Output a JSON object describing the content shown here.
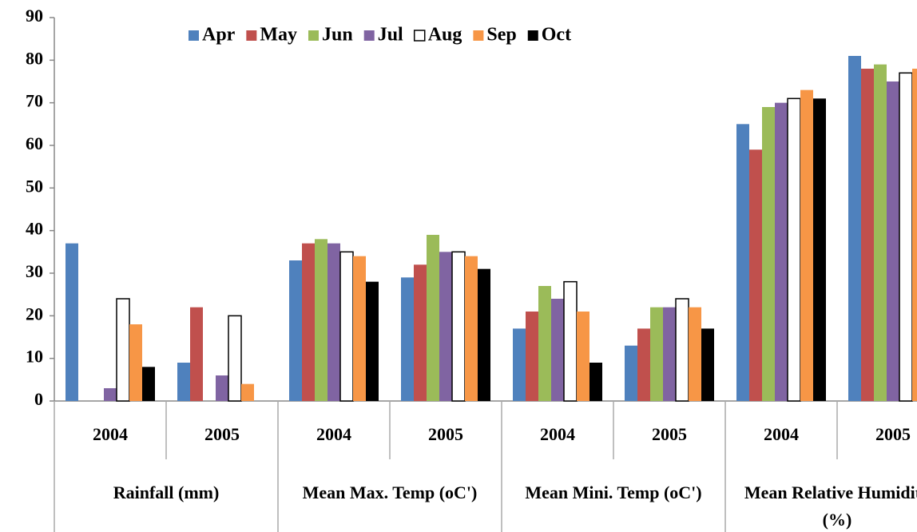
{
  "chart_data": {
    "type": "bar",
    "categories": [
      "2004",
      "2005",
      "2004",
      "2005",
      "2004",
      "2005",
      "2004",
      "2005"
    ],
    "groups": [
      "Rainfall (mm)",
      "Mean Max. Temp (oC')",
      "Mean Mini. Temp (oC')",
      "Mean Relative Humidity (%)"
    ],
    "series": [
      {
        "name": "Apr",
        "color": "#4f81bd",
        "values": [
          37,
          9,
          33,
          29,
          17,
          13,
          65,
          81
        ]
      },
      {
        "name": "May",
        "color": "#c0504d",
        "values": [
          0,
          22,
          37,
          32,
          21,
          17,
          59,
          78
        ]
      },
      {
        "name": "Jun",
        "color": "#9bbb59",
        "values": [
          0,
          0,
          38,
          39,
          27,
          22,
          69,
          79
        ]
      },
      {
        "name": "Jul",
        "color": "#8064a2",
        "values": [
          3,
          6,
          37,
          35,
          24,
          22,
          70,
          75
        ]
      },
      {
        "name": "Aug",
        "color": "#ffffff",
        "values": [
          24,
          20,
          35,
          35,
          28,
          24,
          71,
          77
        ]
      },
      {
        "name": "Sep",
        "color": "#f79646",
        "values": [
          18,
          4,
          34,
          34,
          21,
          22,
          73,
          78
        ]
      },
      {
        "name": "Oct",
        "color": "#000000",
        "values": [
          8,
          0,
          28,
          31,
          9,
          17,
          71,
          null
        ]
      }
    ],
    "ylim": [
      0,
      90
    ],
    "yticks": [
      0,
      10,
      20,
      30,
      40,
      50,
      60,
      70,
      80,
      90
    ],
    "grid": false,
    "legend": "top"
  }
}
